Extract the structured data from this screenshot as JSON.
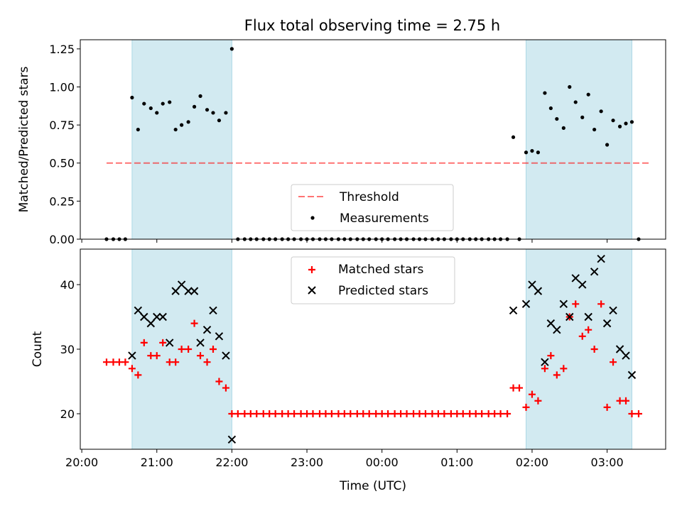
{
  "title": "Flux total observing time = 2.75 h",
  "xlabel": "Time (UTC)",
  "colors": {
    "shade": "#add8e6",
    "threshold": "#ff0000",
    "matched": "#ff0000",
    "predicted": "#000000",
    "measurement": "#000000"
  },
  "chart_data": [
    {
      "type": "scatter",
      "ylabel": "Matched/Predicted stars",
      "ylim": [
        0,
        1.31
      ],
      "yticks": [
        "0.00",
        "0.25",
        "0.50",
        "0.75",
        "1.00",
        "1.25"
      ],
      "xticks": [
        "20:00",
        "21:00",
        "22:00",
        "23:00",
        "00:00",
        "01:00",
        "02:00",
        "03:00"
      ],
      "xlim_hours": [
        19.98,
        27.78
      ],
      "shaded_intervals_hours": [
        [
          20.67,
          22.0
        ],
        [
          25.92,
          27.33
        ]
      ],
      "legend_position": "lower center",
      "threshold": {
        "name": "Threshold",
        "value": 0.5,
        "x_range_hours": [
          20.33,
          27.58
        ],
        "style": "dashed"
      },
      "measurements": {
        "name": "Measurements",
        "points": [
          [
            20.33,
            0.0
          ],
          [
            20.42,
            0.0
          ],
          [
            20.5,
            0.0
          ],
          [
            20.58,
            0.0
          ],
          [
            20.67,
            0.93
          ],
          [
            20.75,
            0.72
          ],
          [
            20.83,
            0.89
          ],
          [
            20.92,
            0.86
          ],
          [
            21.0,
            0.83
          ],
          [
            21.08,
            0.89
          ],
          [
            21.17,
            0.9
          ],
          [
            21.25,
            0.72
          ],
          [
            21.33,
            0.75
          ],
          [
            21.42,
            0.77
          ],
          [
            21.5,
            0.87
          ],
          [
            21.58,
            0.94
          ],
          [
            21.67,
            0.85
          ],
          [
            21.75,
            0.83
          ],
          [
            21.83,
            0.78
          ],
          [
            21.92,
            0.83
          ],
          [
            22.0,
            1.25
          ],
          [
            22.08,
            0.0
          ],
          [
            22.17,
            0.0
          ],
          [
            22.25,
            0.0
          ],
          [
            22.33,
            0.0
          ],
          [
            22.42,
            0.0
          ],
          [
            22.5,
            0.0
          ],
          [
            22.58,
            0.0
          ],
          [
            22.67,
            0.0
          ],
          [
            22.75,
            0.0
          ],
          [
            22.83,
            0.0
          ],
          [
            22.92,
            0.0
          ],
          [
            23.0,
            0.0
          ],
          [
            23.08,
            0.0
          ],
          [
            23.17,
            0.0
          ],
          [
            23.25,
            0.0
          ],
          [
            23.33,
            0.0
          ],
          [
            23.42,
            0.0
          ],
          [
            23.5,
            0.0
          ],
          [
            23.58,
            0.0
          ],
          [
            23.67,
            0.0
          ],
          [
            23.75,
            0.0
          ],
          [
            23.83,
            0.0
          ],
          [
            23.92,
            0.0
          ],
          [
            24.0,
            0.0
          ],
          [
            24.08,
            0.0
          ],
          [
            24.17,
            0.0
          ],
          [
            24.25,
            0.0
          ],
          [
            24.33,
            0.0
          ],
          [
            24.42,
            0.0
          ],
          [
            24.5,
            0.0
          ],
          [
            24.58,
            0.0
          ],
          [
            24.67,
            0.0
          ],
          [
            24.75,
            0.0
          ],
          [
            24.83,
            0.0
          ],
          [
            24.92,
            0.0
          ],
          [
            25.0,
            0.0
          ],
          [
            25.08,
            0.0
          ],
          [
            25.17,
            0.0
          ],
          [
            25.25,
            0.0
          ],
          [
            25.33,
            0.0
          ],
          [
            25.42,
            0.0
          ],
          [
            25.5,
            0.0
          ],
          [
            25.58,
            0.0
          ],
          [
            25.67,
            0.0
          ],
          [
            25.75,
            0.67
          ],
          [
            25.83,
            0.0
          ],
          [
            25.92,
            0.57
          ],
          [
            26.0,
            0.58
          ],
          [
            26.08,
            0.57
          ],
          [
            26.17,
            0.96
          ],
          [
            26.25,
            0.86
          ],
          [
            26.33,
            0.79
          ],
          [
            26.42,
            0.73
          ],
          [
            26.5,
            1.0
          ],
          [
            26.58,
            0.9
          ],
          [
            26.67,
            0.8
          ],
          [
            26.75,
            0.95
          ],
          [
            26.83,
            0.72
          ],
          [
            26.92,
            0.84
          ],
          [
            27.0,
            0.62
          ],
          [
            27.08,
            0.78
          ],
          [
            27.17,
            0.74
          ],
          [
            27.25,
            0.76
          ],
          [
            27.33,
            0.77
          ],
          [
            27.42,
            0.0
          ]
        ]
      }
    },
    {
      "type": "scatter",
      "ylabel": "Count",
      "ylim": [
        14.5,
        45.5
      ],
      "yticks": [
        "20",
        "30",
        "40"
      ],
      "xticks": [
        "20:00",
        "21:00",
        "22:00",
        "23:00",
        "00:00",
        "01:00",
        "02:00",
        "03:00"
      ],
      "xlim_hours": [
        19.98,
        27.78
      ],
      "shaded_intervals_hours": [
        [
          20.67,
          22.0
        ],
        [
          25.92,
          27.33
        ]
      ],
      "legend_position": "upper center",
      "series": [
        {
          "name": "Matched stars",
          "marker": "plus",
          "points": [
            [
              20.33,
              28
            ],
            [
              20.42,
              28
            ],
            [
              20.5,
              28
            ],
            [
              20.58,
              28
            ],
            [
              20.67,
              27
            ],
            [
              20.75,
              26
            ],
            [
              20.83,
              31
            ],
            [
              20.92,
              29
            ],
            [
              21.0,
              29
            ],
            [
              21.08,
              31
            ],
            [
              21.17,
              28
            ],
            [
              21.25,
              28
            ],
            [
              21.33,
              30
            ],
            [
              21.42,
              30
            ],
            [
              21.5,
              34
            ],
            [
              21.58,
              29
            ],
            [
              21.67,
              28
            ],
            [
              21.75,
              30
            ],
            [
              21.83,
              25
            ],
            [
              21.92,
              24
            ],
            [
              22.0,
              20
            ],
            [
              22.08,
              20
            ],
            [
              22.17,
              20
            ],
            [
              22.25,
              20
            ],
            [
              22.33,
              20
            ],
            [
              22.42,
              20
            ],
            [
              22.5,
              20
            ],
            [
              22.58,
              20
            ],
            [
              22.67,
              20
            ],
            [
              22.75,
              20
            ],
            [
              22.83,
              20
            ],
            [
              22.92,
              20
            ],
            [
              23.0,
              20
            ],
            [
              23.08,
              20
            ],
            [
              23.17,
              20
            ],
            [
              23.25,
              20
            ],
            [
              23.33,
              20
            ],
            [
              23.42,
              20
            ],
            [
              23.5,
              20
            ],
            [
              23.58,
              20
            ],
            [
              23.67,
              20
            ],
            [
              23.75,
              20
            ],
            [
              23.83,
              20
            ],
            [
              23.92,
              20
            ],
            [
              24.0,
              20
            ],
            [
              24.08,
              20
            ],
            [
              24.17,
              20
            ],
            [
              24.25,
              20
            ],
            [
              24.33,
              20
            ],
            [
              24.42,
              20
            ],
            [
              24.5,
              20
            ],
            [
              24.58,
              20
            ],
            [
              24.67,
              20
            ],
            [
              24.75,
              20
            ],
            [
              24.83,
              20
            ],
            [
              24.92,
              20
            ],
            [
              25.0,
              20
            ],
            [
              25.08,
              20
            ],
            [
              25.17,
              20
            ],
            [
              25.25,
              20
            ],
            [
              25.33,
              20
            ],
            [
              25.42,
              20
            ],
            [
              25.5,
              20
            ],
            [
              25.58,
              20
            ],
            [
              25.67,
              20
            ],
            [
              25.75,
              24
            ],
            [
              25.83,
              24
            ],
            [
              25.92,
              21
            ],
            [
              26.0,
              23
            ],
            [
              26.08,
              22
            ],
            [
              26.17,
              27
            ],
            [
              26.25,
              29
            ],
            [
              26.33,
              26
            ],
            [
              26.42,
              27
            ],
            [
              26.5,
              35
            ],
            [
              26.58,
              37
            ],
            [
              26.67,
              32
            ],
            [
              26.75,
              33
            ],
            [
              26.83,
              30
            ],
            [
              26.92,
              37
            ],
            [
              27.0,
              21
            ],
            [
              27.08,
              28
            ],
            [
              27.17,
              22
            ],
            [
              27.25,
              22
            ],
            [
              27.33,
              20
            ],
            [
              27.42,
              20
            ]
          ]
        },
        {
          "name": "Predicted stars",
          "marker": "x",
          "points": [
            [
              20.67,
              29
            ],
            [
              20.75,
              36
            ],
            [
              20.83,
              35
            ],
            [
              20.92,
              34
            ],
            [
              21.0,
              35
            ],
            [
              21.08,
              35
            ],
            [
              21.17,
              31
            ],
            [
              21.25,
              39
            ],
            [
              21.33,
              40
            ],
            [
              21.42,
              39
            ],
            [
              21.5,
              39
            ],
            [
              21.58,
              31
            ],
            [
              21.67,
              33
            ],
            [
              21.75,
              36
            ],
            [
              21.83,
              32
            ],
            [
              21.92,
              29
            ],
            [
              22.0,
              16
            ],
            [
              25.75,
              36
            ],
            [
              25.92,
              37
            ],
            [
              26.0,
              40
            ],
            [
              26.08,
              39
            ],
            [
              26.17,
              28
            ],
            [
              26.25,
              34
            ],
            [
              26.33,
              33
            ],
            [
              26.42,
              37
            ],
            [
              26.5,
              35
            ],
            [
              26.58,
              41
            ],
            [
              26.67,
              40
            ],
            [
              26.75,
              35
            ],
            [
              26.83,
              42
            ],
            [
              26.92,
              44
            ],
            [
              27.0,
              34
            ],
            [
              27.08,
              36
            ],
            [
              27.17,
              30
            ],
            [
              27.25,
              29
            ],
            [
              27.33,
              26
            ]
          ]
        }
      ]
    }
  ]
}
